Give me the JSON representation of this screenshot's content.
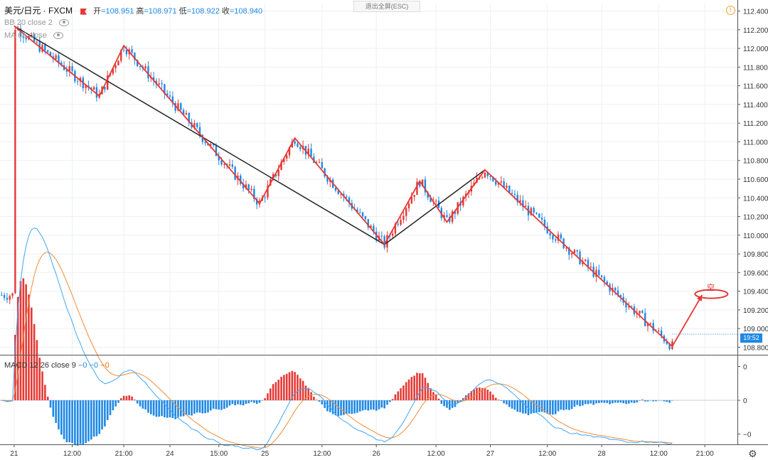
{
  "header": {
    "symbol": "美元/日元 · FXCM",
    "open_label": "开",
    "open": "=108.951",
    "high_label": "高",
    "high": "=108.971",
    "low_label": "低",
    "low": "=108.922",
    "close_label": "收",
    "close": "=108.940",
    "fullscreen_button": "退出全屏(ESC)"
  },
  "indicators": {
    "bb": "BB 20 close 2",
    "ma": "MA 66 close",
    "macd": "MACD 12 26 close 9",
    "macd_values": [
      "−0",
      "−0",
      "−0"
    ]
  },
  "last_price_time": "19:52",
  "annotation": {
    "text": "空"
  },
  "colors": {
    "up": "#e53935",
    "down": "#1e88e5",
    "zigzag": "#e53935",
    "trend": "#222222",
    "macd_line": "#42a5f5",
    "signal_line": "#ef8c3a"
  },
  "chart_data": [
    {
      "type": "candlestick",
      "title": "美元/日元 · FXCM",
      "y_ticks": [
        "112.400",
        "112.200",
        "112.000",
        "111.800",
        "111.600",
        "111.400",
        "111.200",
        "111.000",
        "110.800",
        "110.600",
        "110.400",
        "110.200",
        "110.000",
        "109.800",
        "109.600",
        "109.400",
        "109.200",
        "109.000",
        "108.800"
      ],
      "ylim": [
        108.75,
        112.45
      ],
      "x_ticks": [
        {
          "label": "21",
          "t": 0.3
        },
        {
          "label": "12:00",
          "t": 11
        },
        {
          "label": "21:00",
          "t": 20.5
        },
        {
          "label": "24",
          "t": 29
        },
        {
          "label": "15:00",
          "t": 38
        },
        {
          "label": "25",
          "t": 46.5
        },
        {
          "label": "12:00",
          "t": 57
        },
        {
          "label": "26",
          "t": 67
        },
        {
          "label": "12:00",
          "t": 78
        },
        {
          "label": "27",
          "t": 88
        },
        {
          "label": "12:00",
          "t": 98.5
        },
        {
          "label": "28",
          "t": 108.5
        },
        {
          "label": "12:00",
          "t": 119
        },
        {
          "label": "21:00",
          "t": 127.5
        }
      ],
      "xlim": [
        -2.3,
        133.5
      ],
      "last_price": 108.94,
      "zigzag": {
        "t": [
          0.3,
          16,
          20.5,
          45.5,
          52,
          68.5,
          75,
          80,
          87,
          121.5,
          127
        ],
        "price": [
          112.24,
          111.49,
          112.03,
          110.34,
          111.04,
          109.9,
          110.58,
          110.14,
          110.7,
          108.81,
          109.36
        ]
      },
      "trend_line": {
        "t": [
          0.3,
          68.5,
          87
        ],
        "price": [
          112.24,
          109.9,
          110.7
        ]
      },
      "target": {
        "t": 128.7,
        "price": 109.37
      }
    },
    {
      "type": "macd",
      "title": "MACD 12 26 close 9",
      "y_ticks": [
        "0",
        "0",
        "−0"
      ],
      "x_ticks": [
        "21",
        "12:00",
        "21:00",
        "24",
        "15:00",
        "25",
        "12:00",
        "26",
        "12:00",
        "27",
        "12:00",
        "28",
        "12:00",
        "21:00"
      ]
    }
  ]
}
